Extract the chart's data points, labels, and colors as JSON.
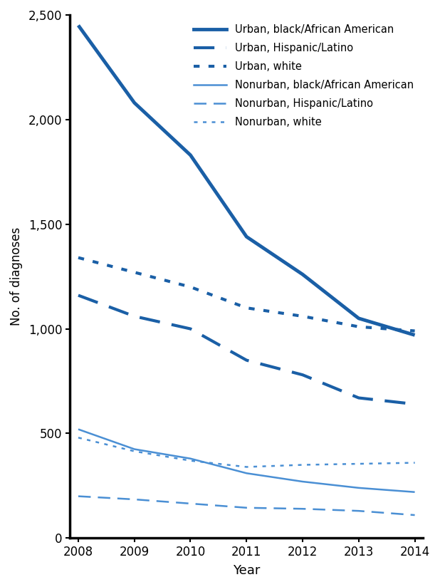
{
  "years": [
    2008,
    2009,
    2010,
    2011,
    2012,
    2013,
    2014
  ],
  "series": [
    {
      "label": "Urban, black/African American",
      "values": [
        2450,
        2080,
        1830,
        1440,
        1260,
        1050,
        970
      ],
      "color": "#1a5fa6",
      "linewidth": 3.5,
      "linestyle": "solid"
    },
    {
      "label": "Urban, Hispanic/Latino",
      "values": [
        1160,
        1060,
        1000,
        850,
        780,
        670,
        640
      ],
      "color": "#1a5fa6",
      "linewidth": 3.0,
      "linestyle": "dashed"
    },
    {
      "label": "Urban, white",
      "values": [
        1340,
        1270,
        1200,
        1100,
        1060,
        1010,
        990
      ],
      "color": "#1a5fa6",
      "linewidth": 3.0,
      "linestyle": "dotted"
    },
    {
      "label": "Nonurban, black/African American",
      "values": [
        520,
        425,
        380,
        310,
        270,
        240,
        220
      ],
      "color": "#4a8fd4",
      "linewidth": 1.8,
      "linestyle": "solid"
    },
    {
      "label": "Nonurban, Hispanic/Latino",
      "values": [
        200,
        185,
        165,
        145,
        140,
        130,
        110
      ],
      "color": "#4a8fd4",
      "linewidth": 1.8,
      "linestyle": "dashed"
    },
    {
      "label": "Nonurban, white",
      "values": [
        480,
        415,
        370,
        340,
        350,
        355,
        360
      ],
      "color": "#4a8fd4",
      "linewidth": 1.8,
      "linestyle": "dotted"
    }
  ],
  "xlabel": "Year",
  "ylabel": "No. of diagnoses",
  "ylim": [
    0,
    2500
  ],
  "yticks": [
    0,
    500,
    1000,
    1500,
    2000,
    2500
  ],
  "ytick_labels": [
    "0",
    "500",
    "1,000",
    "1,500",
    "2,000",
    "2,500"
  ],
  "xticks": [
    2008,
    2009,
    2010,
    2011,
    2012,
    2013,
    2014
  ],
  "dark_blue": "#1a5fa6",
  "light_blue": "#4a8fd4",
  "background_color": "#ffffff",
  "text_color": "#000000",
  "axis_color": "#000000"
}
